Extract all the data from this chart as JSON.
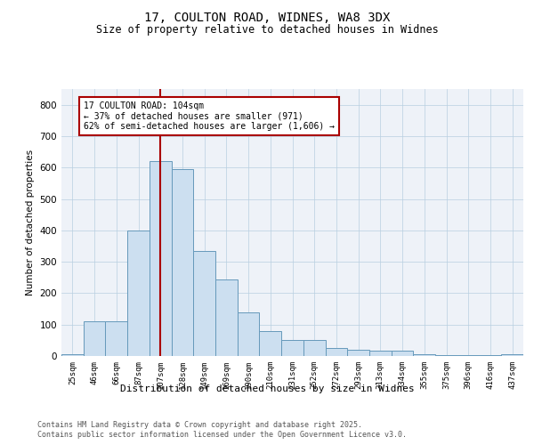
{
  "title1": "17, COULTON ROAD, WIDNES, WA8 3DX",
  "title2": "Size of property relative to detached houses in Widnes",
  "xlabel": "Distribution of detached houses by size in Widnes",
  "ylabel": "Number of detached properties",
  "categories": [
    "25sqm",
    "46sqm",
    "66sqm",
    "87sqm",
    "107sqm",
    "128sqm",
    "149sqm",
    "169sqm",
    "190sqm",
    "210sqm",
    "231sqm",
    "252sqm",
    "272sqm",
    "293sqm",
    "313sqm",
    "334sqm",
    "355sqm",
    "375sqm",
    "396sqm",
    "416sqm",
    "437sqm"
  ],
  "values": [
    5,
    110,
    110,
    400,
    620,
    595,
    335,
    245,
    140,
    80,
    50,
    50,
    25,
    20,
    18,
    18,
    5,
    3,
    3,
    3,
    5
  ],
  "bar_color": "#ccdff0",
  "bar_edge_color": "#6699bb",
  "vline_x_index": 4,
  "vline_color": "#aa0000",
  "annotation_text": "17 COULTON ROAD: 104sqm\n← 37% of detached houses are smaller (971)\n62% of semi-detached houses are larger (1,606) →",
  "annotation_box_edge": "#aa0000",
  "ylim": [
    0,
    850
  ],
  "yticks": [
    0,
    100,
    200,
    300,
    400,
    500,
    600,
    700,
    800
  ],
  "footer1": "Contains HM Land Registry data © Crown copyright and database right 2025.",
  "footer2": "Contains public sector information licensed under the Open Government Licence v3.0.",
  "bg_color": "#ffffff",
  "plot_bg_color": "#eef2f8"
}
